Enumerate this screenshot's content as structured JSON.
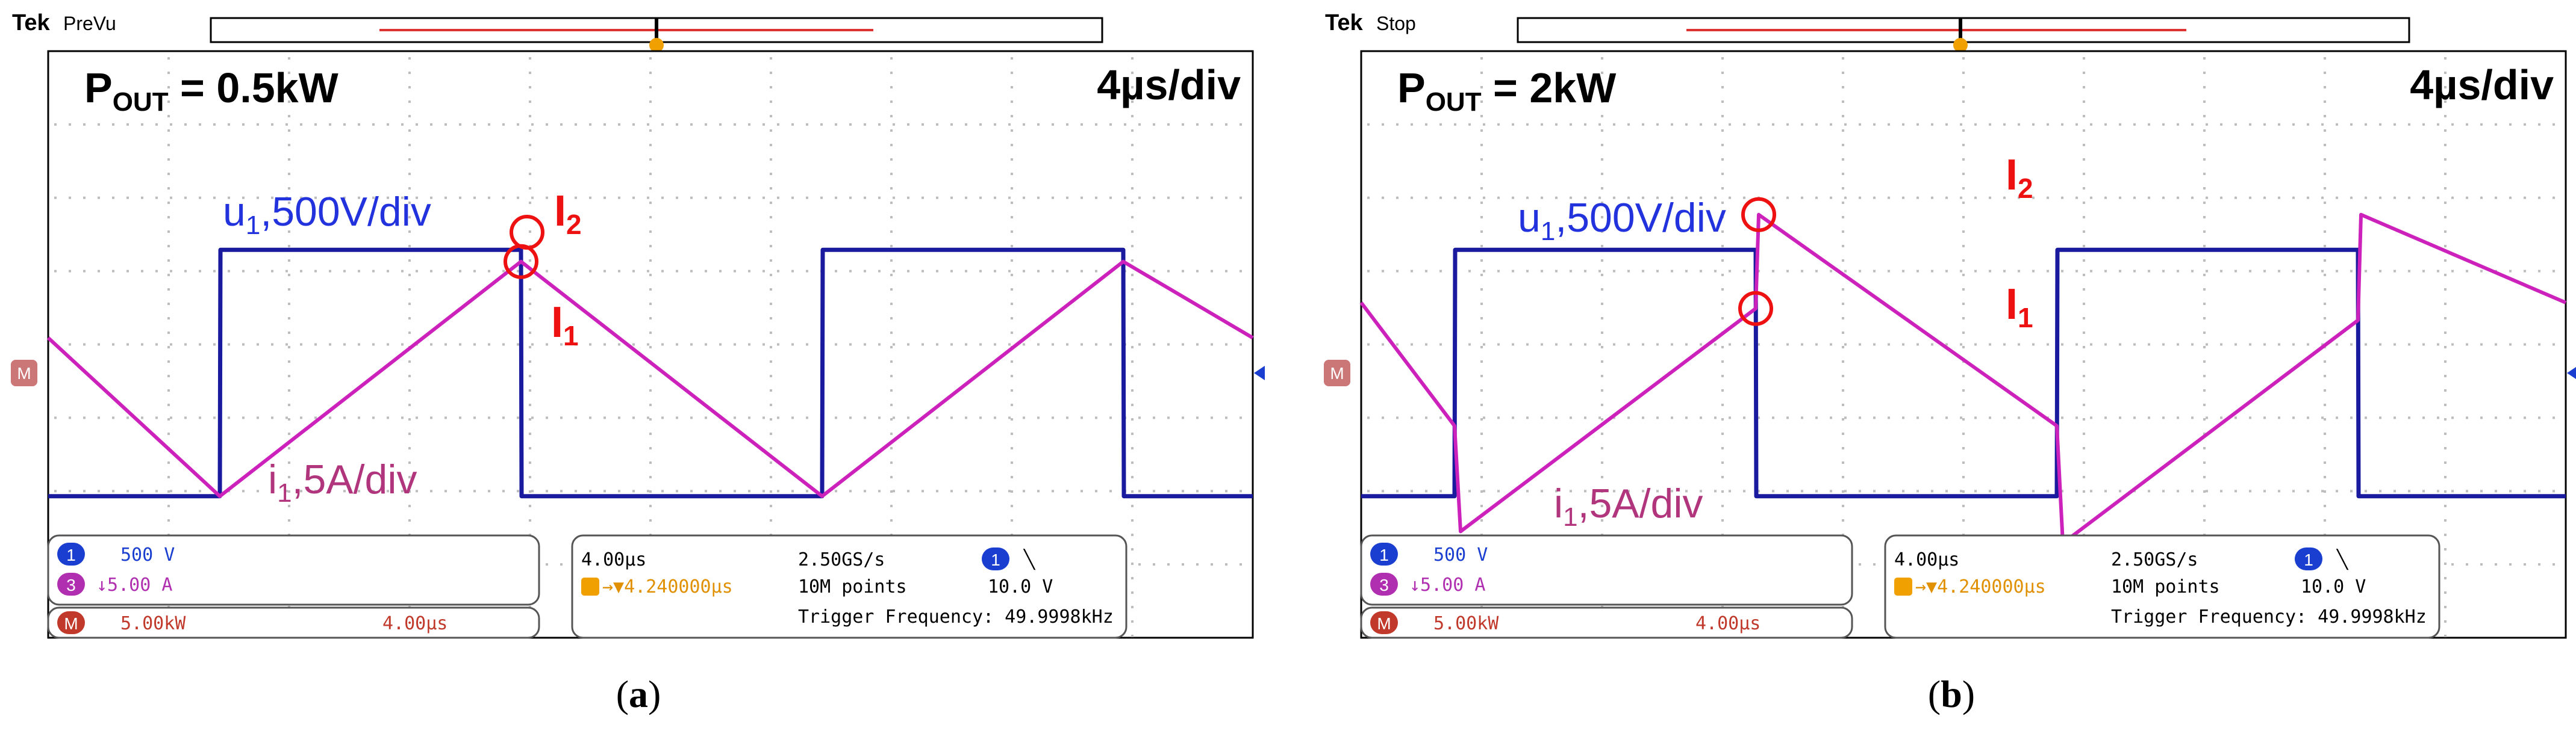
{
  "panels": [
    {
      "id": "a",
      "brand": "Tek",
      "mode": "PreVu",
      "power_label": "P",
      "power_sub": "OUT",
      "power_value": " = 0.5kW",
      "time_div": "4µs/div",
      "u_label": "u",
      "u_sub": "1",
      "u_scale": ",500V/div",
      "i_label": "i",
      "i_sub": "1",
      "i_scale": ",5A/div",
      "i1_label": "I",
      "i1_sub": "1",
      "i2_label": "I",
      "i2_sub": "2",
      "ch1_badge": "1",
      "ch1_value": "500 V",
      "ch3_badge": "3",
      "ch3_value": "↓5.00 A",
      "math_badge": "M",
      "math_value": "5.00kW",
      "math_time": "4.00µs",
      "timebase": "4.00µs",
      "trigger_pos": "→▼4.240000µs",
      "sample_rate": "2.50GS/s",
      "record_length": "10M points",
      "trig_source_badge": "1",
      "trig_slope": "╲",
      "trig_level": "10.0 V",
      "trig_freq": "Trigger Frequency: 49.9998kHz",
      "caption_open": "(",
      "caption_letter": "a",
      "caption_close": ")",
      "chart_data": {
        "type": "line",
        "x_unit": "µs",
        "x_per_div": 4,
        "title": "P_OUT = 0.5kW",
        "series": [
          {
            "name": "u1,500V/div",
            "color": "#1a1a9e",
            "x_div": [
              0,
              2.85,
              2.86,
              7.85,
              7.86,
              12.85,
              12.86,
              17.85,
              17.86,
              20
            ],
            "y_div": [
              -1.05,
              -1.05,
              1.05,
              1.05,
              -1.05,
              -1.05,
              1.05,
              1.05,
              -1.05,
              -1.05
            ]
          },
          {
            "name": "i1,5A/div",
            "color": "#cc22bb",
            "x_div": [
              0,
              2.85,
              7.85,
              12.85,
              17.85,
              20
            ],
            "y_div": [
              0.3,
              -1.05,
              0.95,
              -1.05,
              0.95,
              0.3
            ]
          }
        ],
        "markers": [
          {
            "name": "I1",
            "x_div": 7.85,
            "y_div": 0.95
          },
          {
            "name": "I2",
            "x_div": 7.95,
            "y_div": 1.2
          }
        ]
      }
    },
    {
      "id": "b",
      "brand": "Tek",
      "mode": "Stop",
      "power_label": "P",
      "power_sub": "OUT",
      "power_value": " = 2kW",
      "time_div": "4µs/div",
      "u_label": "u",
      "u_sub": "1",
      "u_scale": ",500V/div",
      "i_label": "i",
      "i_sub": "1",
      "i_scale": ",5A/div",
      "i1_label": "I",
      "i1_sub": "1",
      "i2_label": "I",
      "i2_sub": "2",
      "ch1_badge": "1",
      "ch1_value": "500 V",
      "ch3_badge": "3",
      "ch3_value": "↓5.00 A",
      "math_badge": "M",
      "math_value": "5.00kW",
      "math_time": "4.00µs",
      "timebase": "4.00µs",
      "trigger_pos": "→▼4.240000µs",
      "sample_rate": "2.50GS/s",
      "record_length": "10M points",
      "trig_source_badge": "1",
      "trig_slope": "╲",
      "trig_level": "10.0 V",
      "trig_freq": "Trigger Frequency: 49.9998kHz",
      "caption_open": "(",
      "caption_letter": "b",
      "caption_close": ")",
      "chart_data": {
        "type": "line",
        "x_unit": "µs",
        "x_per_div": 4,
        "title": "P_OUT = 2kW",
        "series": [
          {
            "name": "u1,500V/div",
            "color": "#1a1a9e",
            "x_div": [
              0,
              1.55,
              1.56,
              4.0,
              4.01,
              6.55,
              6.56,
              9.0,
              9.01,
              11.55,
              11.56,
              14.0,
              14.01,
              16.55,
              16.56,
              19.0,
              19.01,
              20
            ],
            "y_div": [
              -1.05,
              -1.05,
              1.05,
              1.05,
              1.05,
              1.05,
              -1.05,
              -1.05,
              -1.05,
              -1.05,
              1.05,
              1.05,
              1.05,
              1.05,
              -1.05,
              -1.05,
              -1.05,
              -1.05
            ]
          },
          {
            "name": "i1,5A/div",
            "color": "#cc22bb",
            "x_div": [
              0,
              1.55,
              1.65,
              6.55,
              6.6,
              11.55,
              11.65,
              16.55,
              16.6,
              20
            ],
            "y_div": [
              0.6,
              -0.45,
              -1.35,
              0.55,
              1.35,
              -0.45,
              -1.45,
              0.45,
              1.35,
              0.6
            ]
          }
        ],
        "markers": [
          {
            "name": "I1",
            "x_div": 6.55,
            "y_div": 0.55
          },
          {
            "name": "I2",
            "x_div": 6.6,
            "y_div": 1.35
          }
        ]
      }
    }
  ],
  "colors": {
    "u1": "#1a1a9e",
    "i1": "#cc22bb",
    "marker": "#ee1111",
    "u_label": "#2233dd",
    "i_label": "#b0357c",
    "trigger": "#f0a000",
    "grid": "#bdbdbd"
  }
}
